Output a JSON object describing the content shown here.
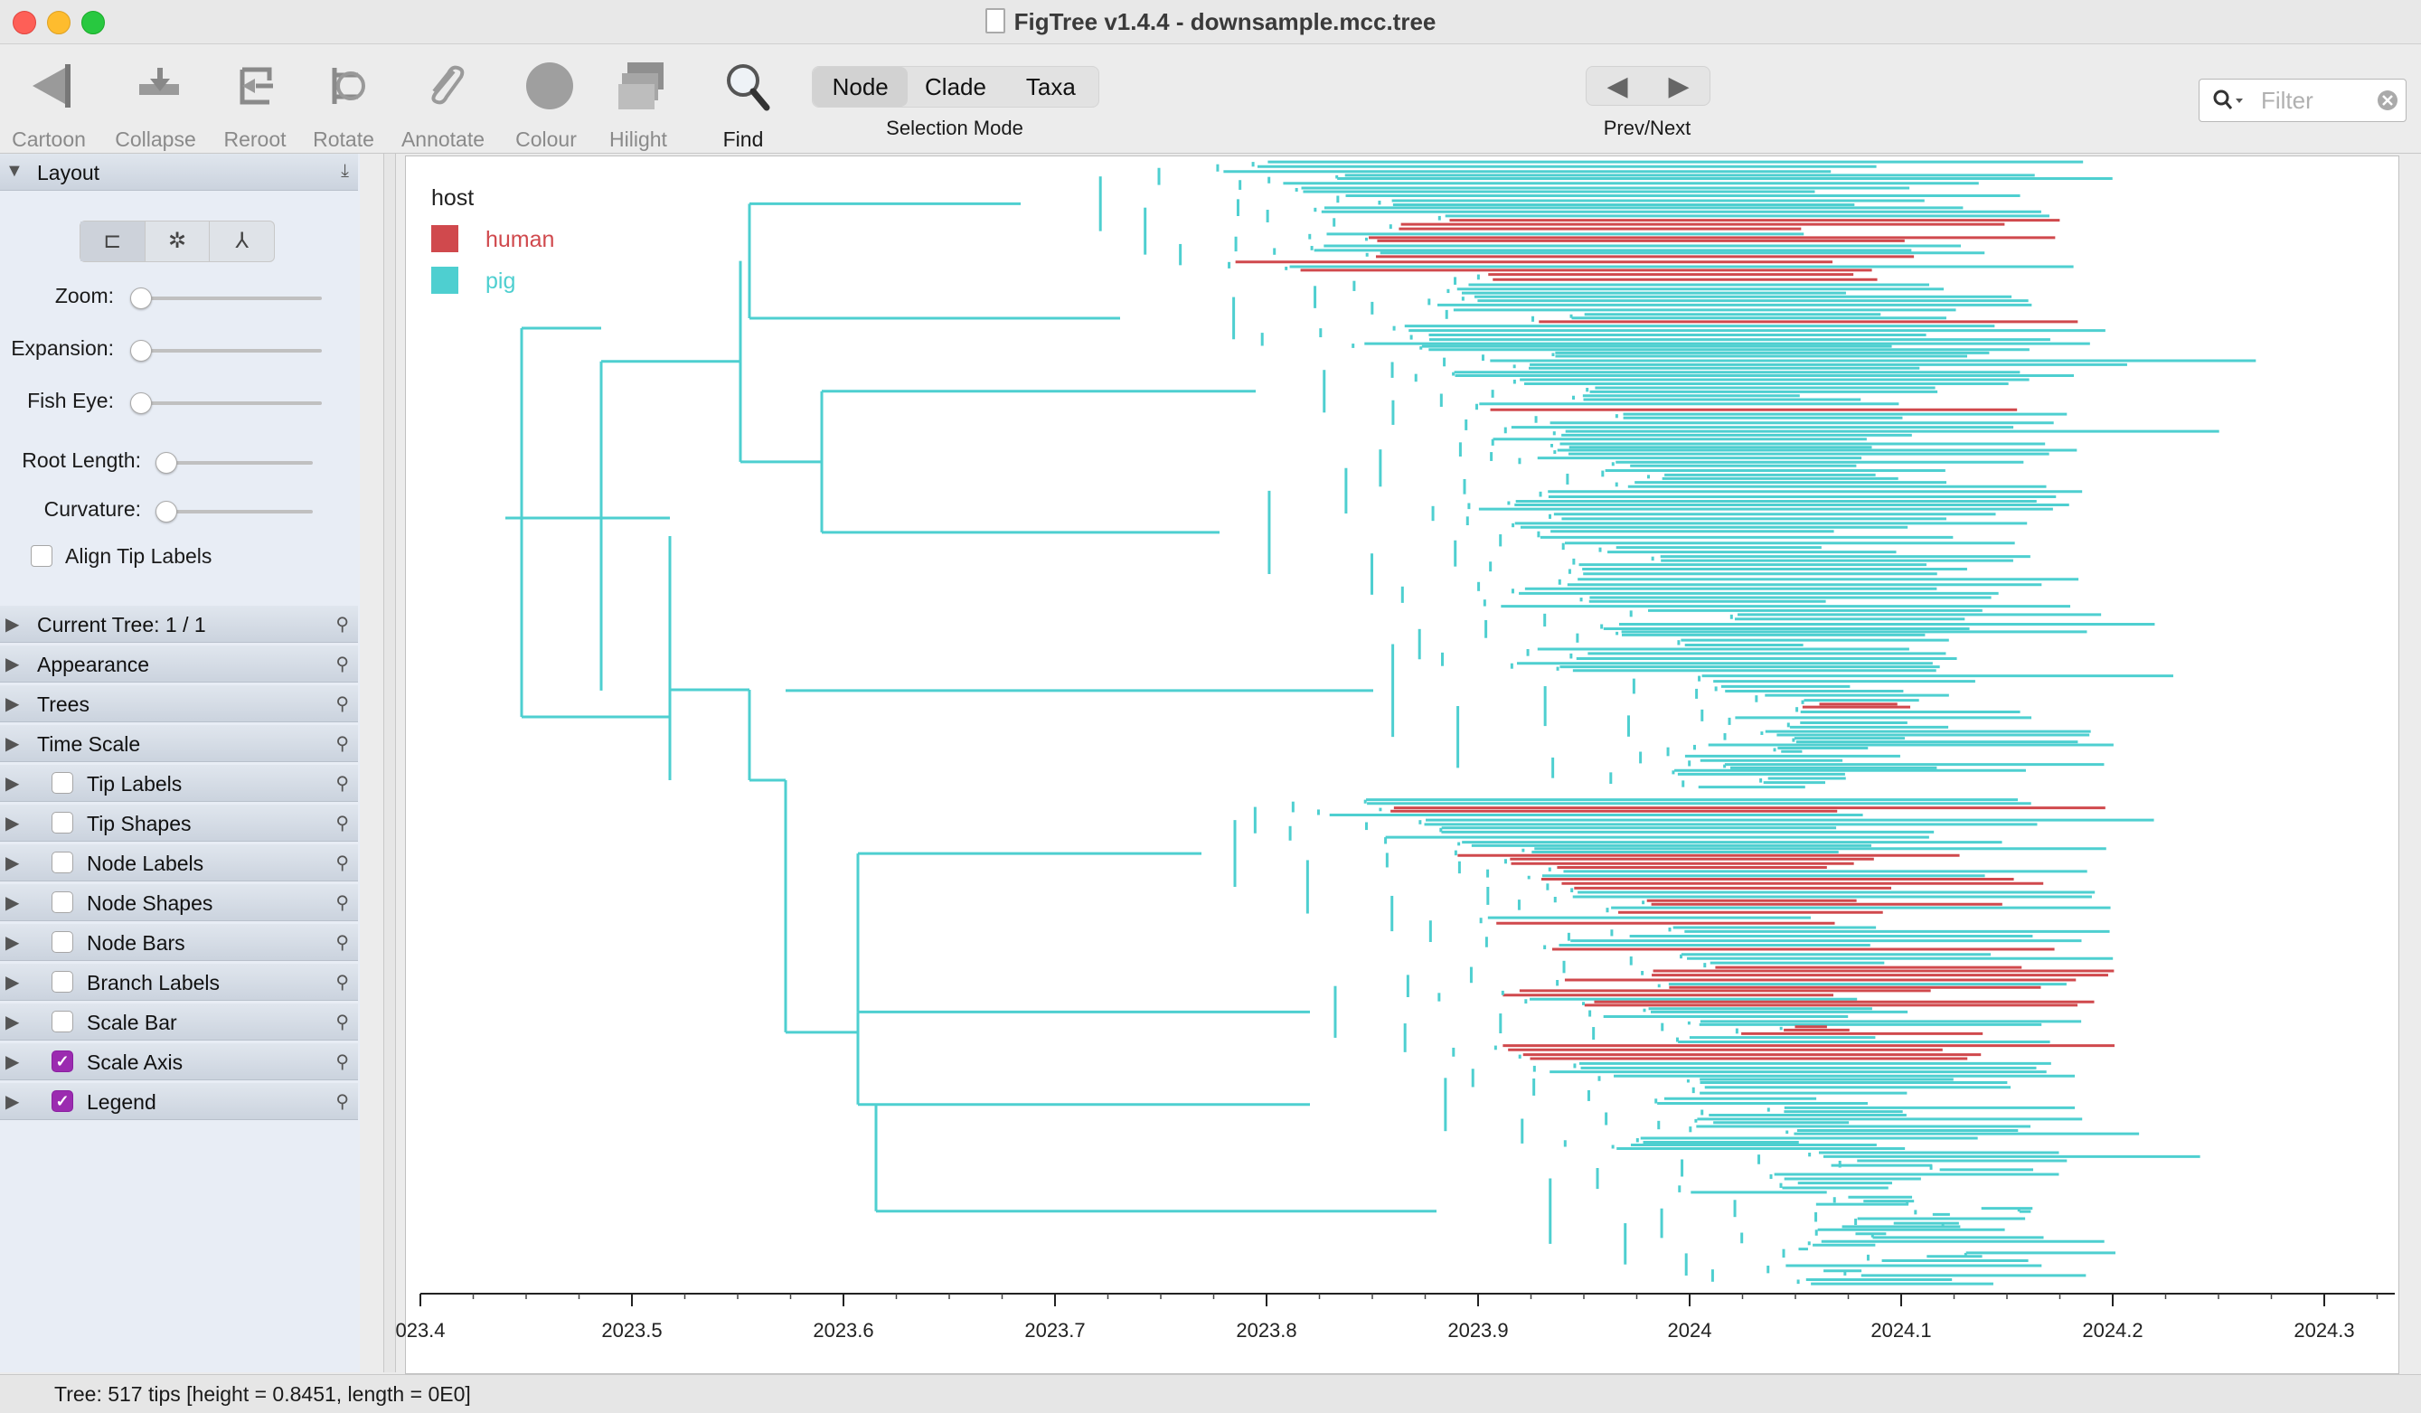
{
  "window": {
    "title": "FigTree v1.4.4 - downsample.mcc.tree"
  },
  "toolbar": {
    "buttons": [
      {
        "label": "Cartoon",
        "icon": "cartoon-icon",
        "enabled": false
      },
      {
        "label": "Collapse",
        "icon": "collapse-icon",
        "enabled": false
      },
      {
        "label": "Reroot",
        "icon": "reroot-icon",
        "enabled": false
      },
      {
        "label": "Rotate",
        "icon": "rotate-icon",
        "enabled": false
      },
      {
        "label": "Annotate",
        "icon": "annotate-icon",
        "enabled": false
      },
      {
        "label": "Colour",
        "icon": "colour-icon",
        "enabled": false
      },
      {
        "label": "Hilight",
        "icon": "hilight-icon",
        "enabled": false
      },
      {
        "label": "Find",
        "icon": "find-icon",
        "enabled": true
      }
    ],
    "selection_mode": {
      "caption": "Selection Mode",
      "options": [
        "Node",
        "Clade",
        "Taxa"
      ],
      "selected": "Node"
    },
    "prev_next": {
      "caption": "Prev/Next",
      "prev": "◀",
      "next": "▶"
    },
    "filter": {
      "placeholder": "Filter",
      "value": ""
    }
  },
  "side_panel": {
    "layout": {
      "title": "Layout",
      "sliders": [
        {
          "label": "Zoom:",
          "value": 0
        },
        {
          "label": "Expansion:",
          "value": 0
        },
        {
          "label": "Fish Eye:",
          "value": 0
        },
        {
          "label": "Root Length:",
          "value": 0
        },
        {
          "label": "Curvature:",
          "value": 0
        }
      ],
      "align_tip_labels": {
        "label": "Align Tip Labels",
        "checked": false
      }
    },
    "sections": [
      {
        "label": "Current Tree: 1 / 1",
        "has_checkbox": false
      },
      {
        "label": "Appearance",
        "has_checkbox": false
      },
      {
        "label": "Trees",
        "has_checkbox": false
      },
      {
        "label": "Time Scale",
        "has_checkbox": false
      },
      {
        "label": "Tip Labels",
        "has_checkbox": true,
        "checked": false
      },
      {
        "label": "Tip Shapes",
        "has_checkbox": true,
        "checked": false
      },
      {
        "label": "Node Labels",
        "has_checkbox": true,
        "checked": false
      },
      {
        "label": "Node Shapes",
        "has_checkbox": true,
        "checked": false
      },
      {
        "label": "Node Bars",
        "has_checkbox": true,
        "checked": false
      },
      {
        "label": "Branch Labels",
        "has_checkbox": true,
        "checked": false
      },
      {
        "label": "Scale Bar",
        "has_checkbox": true,
        "checked": false
      },
      {
        "label": "Scale Axis",
        "has_checkbox": true,
        "checked": true
      },
      {
        "label": "Legend",
        "has_checkbox": true,
        "checked": true
      }
    ]
  },
  "tree": {
    "legend": {
      "title": "host",
      "entries": [
        {
          "label": "human",
          "color": "#d0494d"
        },
        {
          "label": "pig",
          "color": "#4ecfd0"
        }
      ]
    },
    "axis": {
      "ticks": [
        "023.4",
        "2023.5",
        "2023.6",
        "2023.7",
        "2023.8",
        "2023.9",
        "2024",
        "2024.1",
        "2024.2",
        "2024.3"
      ],
      "range": [
        2023.4,
        2024.33
      ]
    },
    "tip_count": 517
  },
  "status_bar": {
    "text": "Tree: 517 tips [height = 0.8451, length = 0E0]"
  },
  "colors": {
    "accent_check": "#9b2bb0",
    "pig": "#4ecfd0",
    "human": "#d0494d"
  }
}
